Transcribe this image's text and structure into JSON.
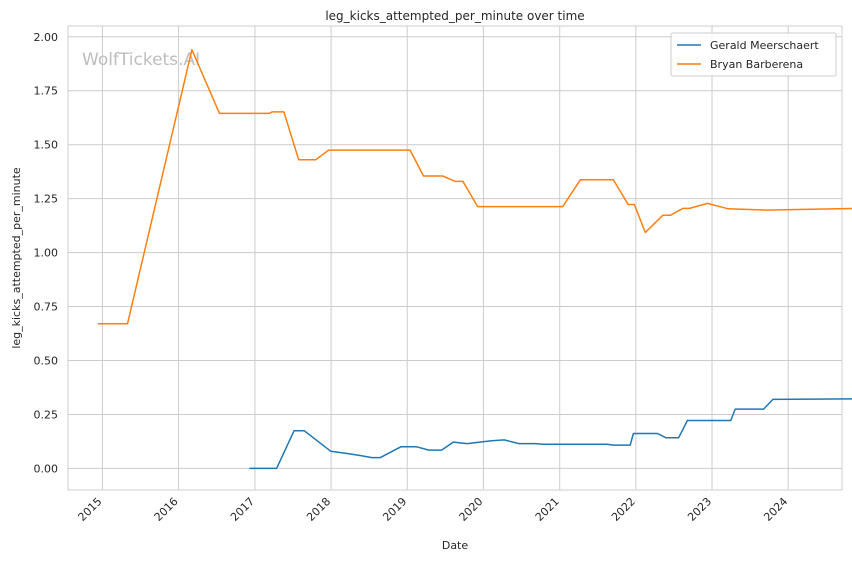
{
  "chart_data": {
    "type": "line",
    "title": "leg_kicks_attempted_per_minute over time",
    "xlabel": "Date",
    "ylabel": "leg_kicks_attempted_per_minute",
    "watermark": "WolfTickets.AI",
    "x_tick_labels": [
      "2015",
      "2016",
      "2017",
      "2018",
      "2019",
      "2020",
      "2021",
      "2022",
      "2023",
      "2024"
    ],
    "y_tick_labels": [
      "0.00",
      "0.25",
      "0.50",
      "0.75",
      "1.00",
      "1.25",
      "1.50",
      "1.75",
      "2.00"
    ],
    "ylim": [
      -0.1,
      2.05
    ],
    "xlim": [
      "2014-07-20",
      "2024-09-15"
    ],
    "grid": true,
    "legend_position": "top-right",
    "series": [
      {
        "name": "Gerald Meerschaert",
        "color": "#1f77b4",
        "points": [
          [
            "2016-12-09",
            0.0
          ],
          [
            "2017-04-15",
            0.0
          ],
          [
            "2017-07-08",
            0.175
          ],
          [
            "2017-08-25",
            0.175
          ],
          [
            "2017-12-30",
            0.08
          ],
          [
            "2018-03-10",
            0.07
          ],
          [
            "2018-05-20",
            0.06
          ],
          [
            "2018-07-15",
            0.05
          ],
          [
            "2018-08-25",
            0.05
          ],
          [
            "2018-12-01",
            0.1
          ],
          [
            "2019-02-15",
            0.1
          ],
          [
            "2019-04-15",
            0.085
          ],
          [
            "2019-06-15",
            0.085
          ],
          [
            "2019-08-10",
            0.122
          ],
          [
            "2019-10-15",
            0.115
          ],
          [
            "2020-02-10",
            0.128
          ],
          [
            "2020-04-10",
            0.132
          ],
          [
            "2020-06-20",
            0.115
          ],
          [
            "2020-09-05",
            0.115
          ],
          [
            "2020-10-15",
            0.112
          ],
          [
            "2021-08-15",
            0.112
          ],
          [
            "2021-09-15",
            0.108
          ],
          [
            "2021-12-05",
            0.108
          ],
          [
            "2021-12-20",
            0.162
          ],
          [
            "2022-04-15",
            0.162
          ],
          [
            "2022-05-25",
            0.142
          ],
          [
            "2022-07-25",
            0.142
          ],
          [
            "2022-09-05",
            0.222
          ],
          [
            "2023-04-01",
            0.222
          ],
          [
            "2023-04-22",
            0.275
          ],
          [
            "2023-09-05",
            0.275
          ],
          [
            "2023-10-20",
            0.32
          ],
          [
            "2024-12-01",
            0.322
          ]
        ]
      },
      {
        "name": "Bryan Barberena",
        "color": "#ff7f0e",
        "points": [
          [
            "2014-12-13",
            0.67
          ],
          [
            "2015-05-01",
            0.67
          ],
          [
            "2016-03-05",
            1.94
          ],
          [
            "2016-07-15",
            1.645
          ],
          [
            "2017-03-10",
            1.645
          ],
          [
            "2017-03-25",
            1.652
          ],
          [
            "2017-05-20",
            1.652
          ],
          [
            "2017-07-30",
            1.43
          ],
          [
            "2017-10-20",
            1.43
          ],
          [
            "2017-12-20",
            1.475
          ],
          [
            "2019-01-15",
            1.475
          ],
          [
            "2019-03-20",
            1.355
          ],
          [
            "2019-06-20",
            1.355
          ],
          [
            "2019-08-20",
            1.33
          ],
          [
            "2019-09-25",
            1.33
          ],
          [
            "2019-12-05",
            1.213
          ],
          [
            "2021-01-15",
            1.213
          ],
          [
            "2021-04-10",
            1.338
          ],
          [
            "2021-09-15",
            1.338
          ],
          [
            "2021-11-25",
            1.223
          ],
          [
            "2021-12-25",
            1.223
          ],
          [
            "2022-02-15",
            1.093
          ],
          [
            "2022-05-10",
            1.173
          ],
          [
            "2022-06-15",
            1.173
          ],
          [
            "2022-08-15",
            1.205
          ],
          [
            "2022-09-15",
            1.205
          ],
          [
            "2022-12-10",
            1.228
          ],
          [
            "2023-03-20",
            1.203
          ],
          [
            "2023-09-10",
            1.197
          ],
          [
            "2024-12-01",
            1.205
          ]
        ]
      }
    ]
  }
}
